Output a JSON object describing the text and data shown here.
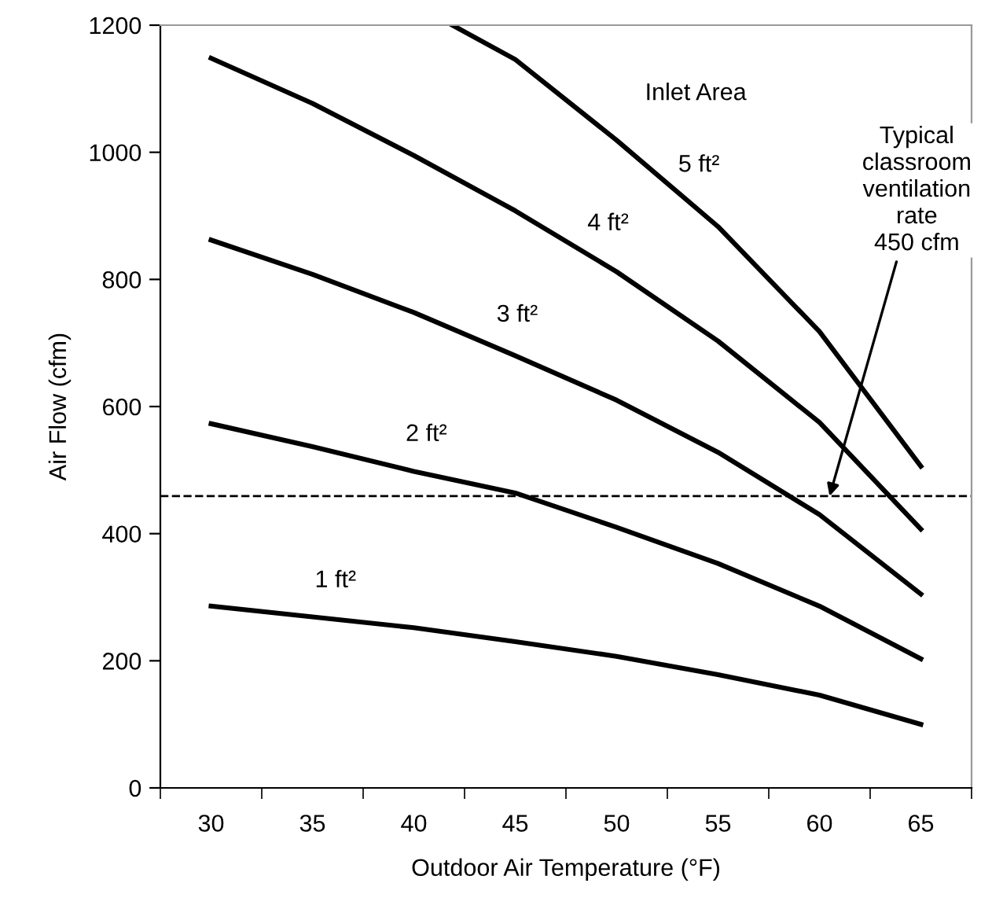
{
  "chart_data": {
    "type": "line",
    "xlabel": "Outdoor Air Temperature (°F)",
    "ylabel": "Air Flow (cfm)",
    "x": [
      30,
      35,
      40,
      45,
      50,
      55,
      60,
      65
    ],
    "series": [
      {
        "name": "1 ft²",
        "color": "#000000",
        "values": [
          286,
          269,
          252,
          230,
          207,
          178,
          146,
          100
        ]
      },
      {
        "name": "2 ft²",
        "color": "#000000",
        "values": [
          573,
          537,
          498,
          464,
          410,
          353,
          286,
          203
        ]
      },
      {
        "name": "3 ft²",
        "color": "#000000",
        "values": [
          862,
          808,
          748,
          680,
          610,
          528,
          430,
          305
        ]
      },
      {
        "name": "4 ft²",
        "color": "#000000",
        "values": [
          1148,
          1077,
          995,
          908,
          812,
          703,
          575,
          407
        ]
      },
      {
        "name": "5 ft²",
        "color": "#000000",
        "x": [
          41.9,
          45,
          50,
          55,
          60,
          65
        ],
        "values": [
          1200,
          1146,
          1019,
          883,
          718,
          506
        ]
      }
    ],
    "xlim": [
      27.5,
      67.5
    ],
    "xticks": [
      30,
      35,
      40,
      45,
      50,
      55,
      60,
      65
    ],
    "ylim": [
      0,
      1200
    ],
    "yticks": [
      0,
      200,
      400,
      600,
      800,
      1000,
      1200
    ],
    "grid": false,
    "legend": false,
    "marker": "none",
    "line_style": "solid",
    "ref_lines": [
      {
        "axis": "y",
        "value": 459,
        "label": null,
        "color": "#000000",
        "line_style": "dashed"
      }
    ],
    "annotations": [
      "Inlet Area",
      {
        "text": "Typical\nclassroom\nventilation\nrate\n450 cfm",
        "x": 60.5,
        "y": 459
      }
    ]
  }
}
